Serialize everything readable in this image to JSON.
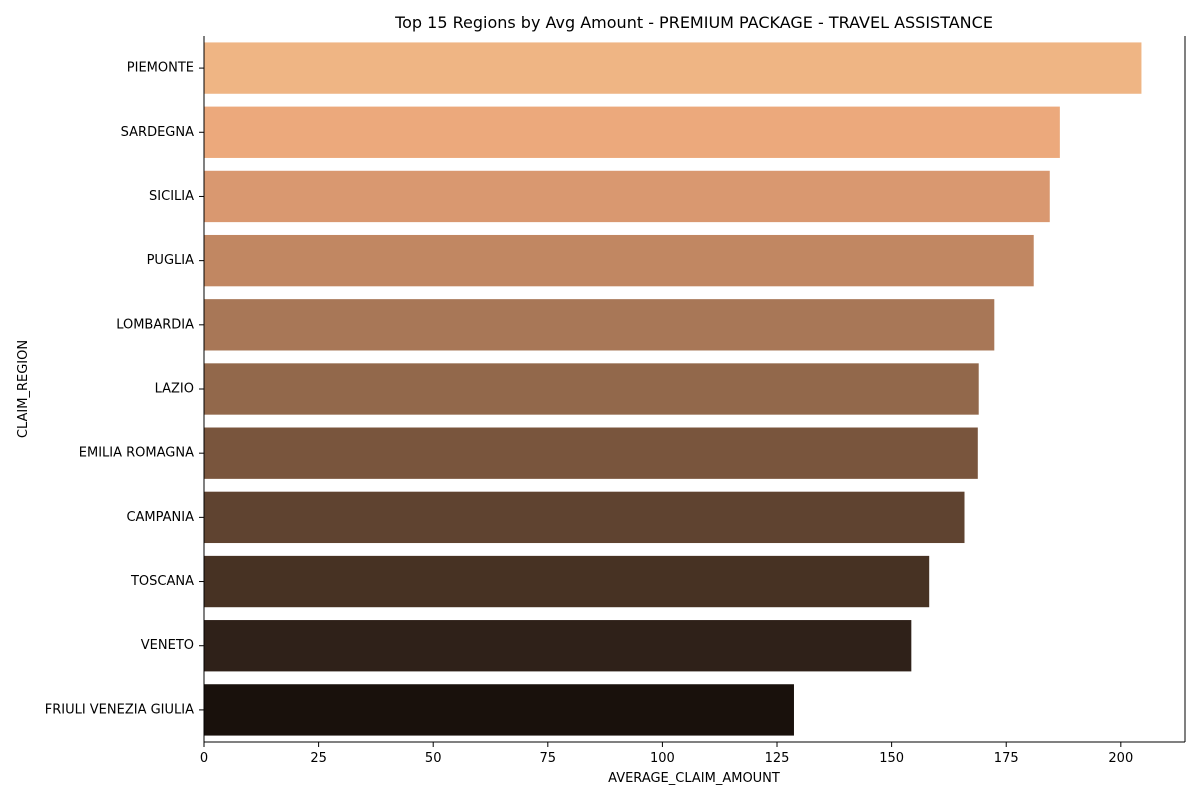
{
  "chart_data": {
    "type": "bar",
    "orientation": "horizontal",
    "title": "Top 15 Regions by Avg Amount - PREMIUM PACKAGE - TRAVEL ASSISTANCE",
    "xlabel": "AVERAGE_CLAIM_AMOUNT",
    "ylabel": "CLAIM_REGION",
    "xlim": [
      0,
      214
    ],
    "xticks": [
      0,
      25,
      50,
      75,
      100,
      125,
      150,
      175,
      200
    ],
    "categories": [
      "PIEMONTE",
      "SARDEGNA",
      "SICILIA",
      "PUGLIA",
      "LOMBARDIA",
      "LAZIO",
      "EMILIA ROMAGNA",
      "CAMPANIA",
      "TOSCANA",
      "VENETO",
      "FRIULI VENEZIA GIULIA"
    ],
    "values": [
      204.5,
      186.7,
      184.5,
      181.0,
      172.4,
      169.0,
      168.8,
      165.9,
      158.2,
      154.3,
      128.7
    ],
    "colors": [
      "#efb584",
      "#eca97c",
      "#d99870",
      "#c18762",
      "#a87757",
      "#92684b",
      "#79553d",
      "#5f4330",
      "#473223",
      "#2f2119",
      "#19110c"
    ],
    "grid": false,
    "legend": "none"
  }
}
